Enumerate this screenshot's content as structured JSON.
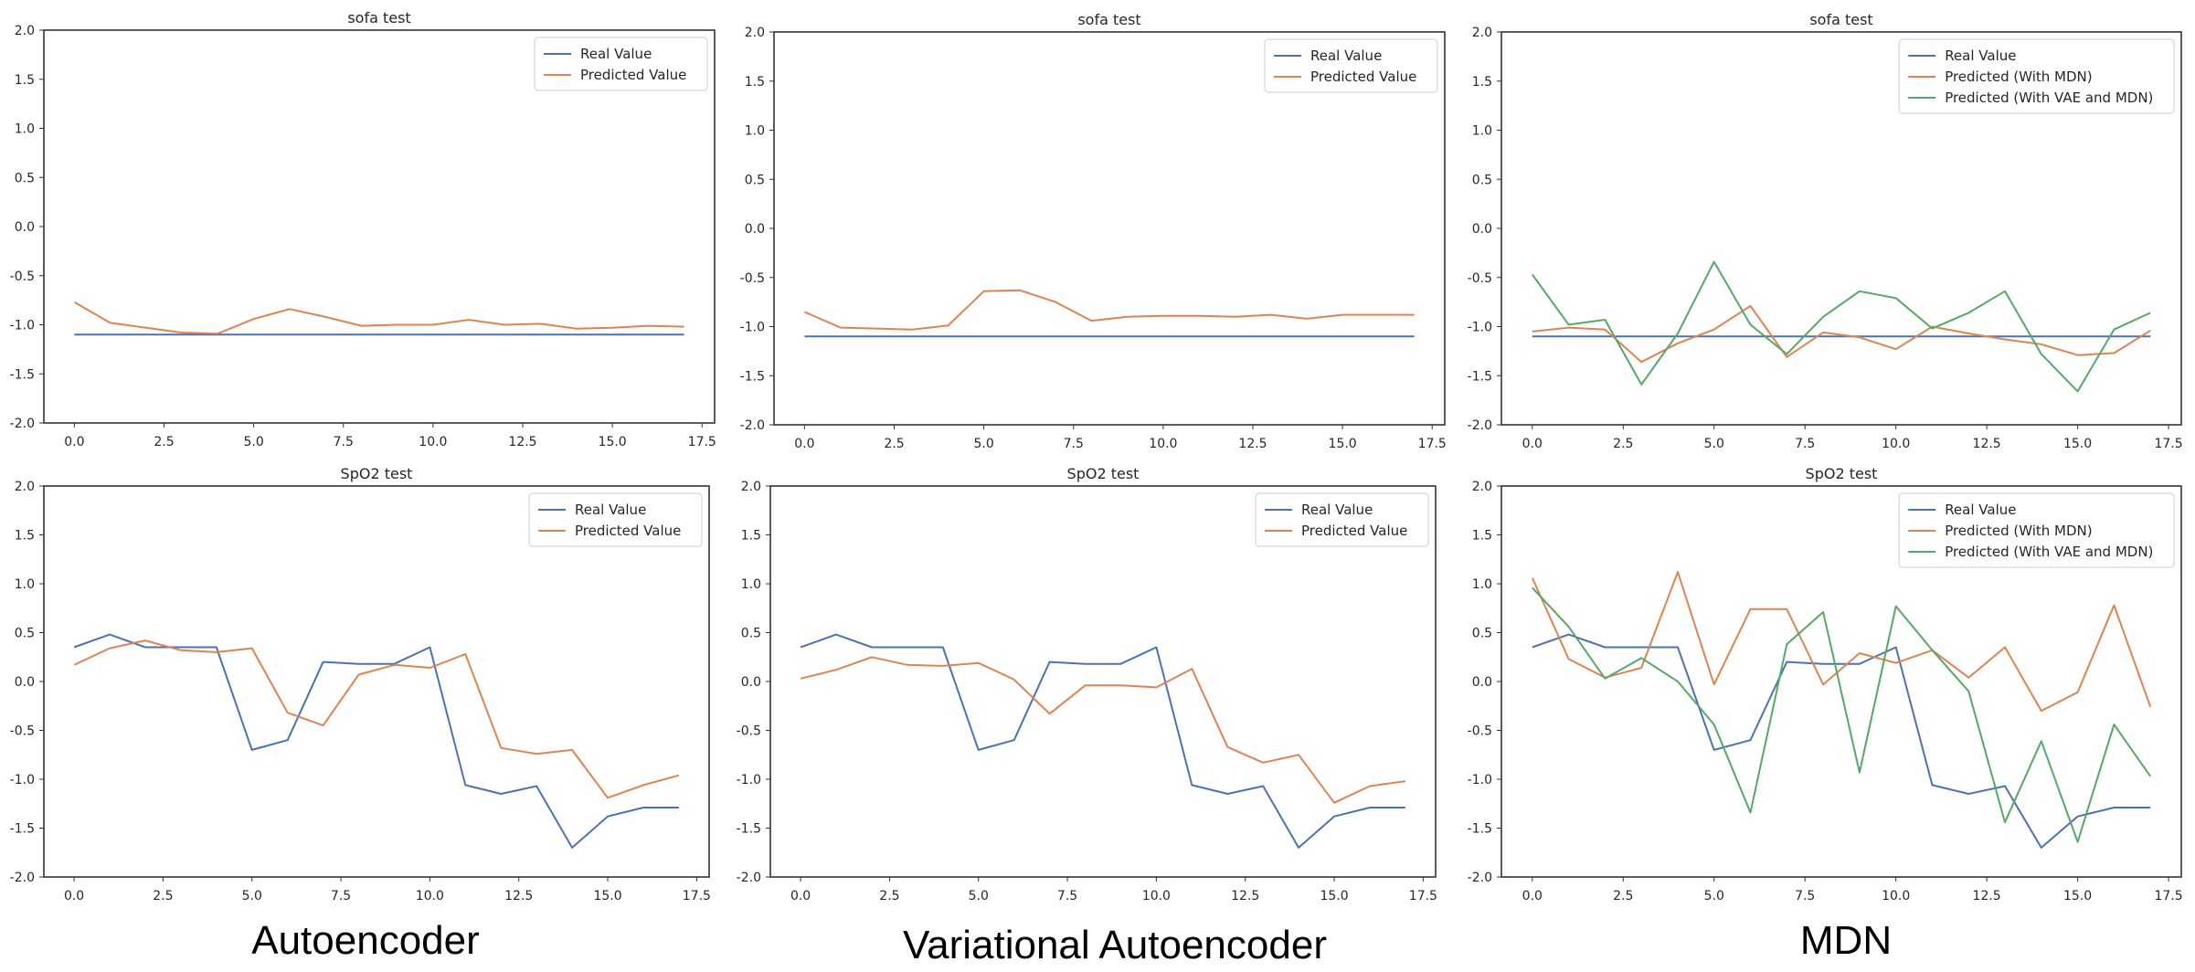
{
  "columns": [
    {
      "caption": "Autoencoder"
    },
    {
      "caption": "Variational Autoencoder"
    },
    {
      "caption": "MDN"
    }
  ],
  "colors": {
    "real": "#4c72b0",
    "mdn": "#dd8452",
    "vae_mdn": "#55a868"
  },
  "chart_data": [
    {
      "type": "line",
      "title": "sofa test",
      "xlabel": "",
      "ylabel": "",
      "xlim": [
        -0.85,
        17.85
      ],
      "ylim": [
        -2.0,
        2.0
      ],
      "xticks": [
        "0.0",
        "2.5",
        "5.0",
        "7.5",
        "10.0",
        "12.5",
        "15.0",
        "17.5"
      ],
      "yticks": [
        "-2.0",
        "-1.5",
        "-1.0",
        "-0.5",
        "0.0",
        "0.5",
        "1.0",
        "1.5",
        "2.0"
      ],
      "grid": false,
      "legend": "top-right",
      "x": [
        0,
        1,
        2,
        3,
        4,
        5,
        6,
        7,
        8,
        9,
        10,
        11,
        12,
        13,
        14,
        15,
        16,
        17
      ],
      "series": [
        {
          "name": "Real Value",
          "color": "#4c72b0",
          "values": [
            -1.1,
            -1.1,
            -1.1,
            -1.1,
            -1.1,
            -1.1,
            -1.1,
            -1.1,
            -1.1,
            -1.1,
            -1.1,
            -1.1,
            -1.1,
            -1.1,
            -1.1,
            -1.1,
            -1.1,
            -1.1
          ]
        },
        {
          "name": "Predicted Value",
          "color": "#dd8452",
          "values": [
            -0.77,
            -0.98,
            -1.03,
            -1.08,
            -1.09,
            -0.94,
            -0.84,
            -0.92,
            -1.01,
            -1.0,
            -1.0,
            -0.95,
            -1.0,
            -0.99,
            -1.04,
            -1.03,
            -1.01,
            -1.02
          ]
        }
      ]
    },
    {
      "type": "line",
      "title": "sofa test",
      "xlabel": "",
      "ylabel": "",
      "xlim": [
        -0.85,
        17.85
      ],
      "ylim": [
        -2.0,
        2.0
      ],
      "xticks": [
        "0.0",
        "2.5",
        "5.0",
        "7.5",
        "10.0",
        "12.5",
        "15.0",
        "17.5"
      ],
      "yticks": [
        "-2.0",
        "-1.5",
        "-1.0",
        "-0.5",
        "0.0",
        "0.5",
        "1.0",
        "1.5",
        "2.0"
      ],
      "grid": false,
      "legend": "top-right",
      "x": [
        0,
        1,
        2,
        3,
        4,
        5,
        6,
        7,
        8,
        9,
        10,
        11,
        12,
        13,
        14,
        15,
        16,
        17
      ],
      "series": [
        {
          "name": "Real Value",
          "color": "#4c72b0",
          "values": [
            -1.1,
            -1.1,
            -1.1,
            -1.1,
            -1.1,
            -1.1,
            -1.1,
            -1.1,
            -1.1,
            -1.1,
            -1.1,
            -1.1,
            -1.1,
            -1.1,
            -1.1,
            -1.1,
            -1.1,
            -1.1
          ]
        },
        {
          "name": "Predicted Value",
          "color": "#dd8452",
          "values": [
            -0.85,
            -1.01,
            -1.02,
            -1.03,
            -0.99,
            -0.64,
            -0.63,
            -0.75,
            -0.94,
            -0.9,
            -0.89,
            -0.89,
            -0.9,
            -0.88,
            -0.92,
            -0.88,
            -0.88,
            -0.88
          ]
        }
      ]
    },
    {
      "type": "line",
      "title": "sofa test",
      "xlabel": "",
      "ylabel": "",
      "xlim": [
        -0.85,
        17.85
      ],
      "ylim": [
        -2.0,
        2.0
      ],
      "xticks": [
        "0.0",
        "2.5",
        "5.0",
        "7.5",
        "10.0",
        "12.5",
        "15.0",
        "17.5"
      ],
      "yticks": [
        "-2.0",
        "-1.5",
        "-1.0",
        "-0.5",
        "0.0",
        "0.5",
        "1.0",
        "1.5",
        "2.0"
      ],
      "grid": false,
      "legend": "top-right",
      "x": [
        0,
        1,
        2,
        3,
        4,
        5,
        6,
        7,
        8,
        9,
        10,
        11,
        12,
        13,
        14,
        15,
        16,
        17
      ],
      "series": [
        {
          "name": "Real Value",
          "color": "#4c72b0",
          "values": [
            -1.1,
            -1.1,
            -1.1,
            -1.1,
            -1.1,
            -1.1,
            -1.1,
            -1.1,
            -1.1,
            -1.1,
            -1.1,
            -1.1,
            -1.1,
            -1.1,
            -1.1,
            -1.1,
            -1.1,
            -1.1
          ]
        },
        {
          "name": "Predicted (With MDN)",
          "color": "#dd8452",
          "values": [
            -1.05,
            -1.01,
            -1.03,
            -1.36,
            -1.17,
            -1.03,
            -0.79,
            -1.31,
            -1.06,
            -1.11,
            -1.23,
            -1.0,
            -1.07,
            -1.13,
            -1.18,
            -1.29,
            -1.27,
            -1.04
          ]
        },
        {
          "name": "Predicted (With VAE and MDN)",
          "color": "#55a868",
          "values": [
            -0.47,
            -0.98,
            -0.93,
            -1.59,
            -1.07,
            -0.34,
            -0.98,
            -1.28,
            -0.9,
            -0.64,
            -0.71,
            -1.02,
            -0.86,
            -0.64,
            -1.28,
            -1.66,
            -1.03,
            -0.86
          ]
        }
      ]
    },
    {
      "type": "line",
      "title": "SpO2 test",
      "xlabel": "",
      "ylabel": "",
      "xlim": [
        -0.85,
        17.85
      ],
      "ylim": [
        -2.0,
        2.0
      ],
      "xticks": [
        "0.0",
        "2.5",
        "5.0",
        "7.5",
        "10.0",
        "12.5",
        "15.0",
        "17.5"
      ],
      "yticks": [
        "-2.0",
        "-1.5",
        "-1.0",
        "-0.5",
        "0.0",
        "0.5",
        "1.0",
        "1.5",
        "2.0"
      ],
      "grid": false,
      "legend": "top-right",
      "x": [
        0,
        1,
        2,
        3,
        4,
        5,
        6,
        7,
        8,
        9,
        10,
        11,
        12,
        13,
        14,
        15,
        16,
        17
      ],
      "series": [
        {
          "name": "Real Value",
          "color": "#4c72b0",
          "values": [
            0.35,
            0.48,
            0.35,
            0.35,
            0.35,
            -0.7,
            -0.6,
            0.2,
            0.18,
            0.18,
            0.35,
            -1.06,
            -1.15,
            -1.07,
            -1.7,
            -1.38,
            -1.29,
            -1.29
          ]
        },
        {
          "name": "Predicted Value",
          "color": "#dd8452",
          "values": [
            0.17,
            0.34,
            0.42,
            0.32,
            0.3,
            0.34,
            -0.32,
            -0.45,
            0.07,
            0.17,
            0.14,
            0.28,
            -0.68,
            -0.74,
            -0.7,
            -1.19,
            -1.06,
            -0.96
          ]
        }
      ]
    },
    {
      "type": "line",
      "title": "SpO2 test",
      "xlabel": "",
      "ylabel": "",
      "xlim": [
        -0.85,
        17.85
      ],
      "ylim": [
        -2.0,
        2.0
      ],
      "xticks": [
        "0.0",
        "2.5",
        "5.0",
        "7.5",
        "10.0",
        "12.5",
        "15.0",
        "17.5"
      ],
      "yticks": [
        "-2.0",
        "-1.5",
        "-1.0",
        "-0.5",
        "0.0",
        "0.5",
        "1.0",
        "1.5",
        "2.0"
      ],
      "grid": false,
      "legend": "top-right",
      "x": [
        0,
        1,
        2,
        3,
        4,
        5,
        6,
        7,
        8,
        9,
        10,
        11,
        12,
        13,
        14,
        15,
        16,
        17
      ],
      "series": [
        {
          "name": "Real Value",
          "color": "#4c72b0",
          "values": [
            0.35,
            0.48,
            0.35,
            0.35,
            0.35,
            -0.7,
            -0.6,
            0.2,
            0.18,
            0.18,
            0.35,
            -1.06,
            -1.15,
            -1.07,
            -1.7,
            -1.38,
            -1.29,
            -1.29
          ]
        },
        {
          "name": "Predicted Value",
          "color": "#dd8452",
          "values": [
            0.03,
            0.12,
            0.25,
            0.17,
            0.16,
            0.19,
            0.02,
            -0.33,
            -0.04,
            -0.04,
            -0.06,
            0.13,
            -0.67,
            -0.83,
            -0.75,
            -1.24,
            -1.07,
            -1.02
          ]
        }
      ]
    },
    {
      "type": "line",
      "title": "SpO2 test",
      "xlabel": "",
      "ylabel": "",
      "xlim": [
        -0.85,
        17.85
      ],
      "ylim": [
        -2.0,
        2.0
      ],
      "xticks": [
        "0.0",
        "2.5",
        "5.0",
        "7.5",
        "10.0",
        "12.5",
        "15.0",
        "17.5"
      ],
      "yticks": [
        "-2.0",
        "-1.5",
        "-1.0",
        "-0.5",
        "0.0",
        "0.5",
        "1.0",
        "1.5",
        "2.0"
      ],
      "grid": false,
      "legend": "top-right",
      "x": [
        0,
        1,
        2,
        3,
        4,
        5,
        6,
        7,
        8,
        9,
        10,
        11,
        12,
        13,
        14,
        15,
        16,
        17
      ],
      "series": [
        {
          "name": "Real Value",
          "color": "#4c72b0",
          "values": [
            0.35,
            0.48,
            0.35,
            0.35,
            0.35,
            -0.7,
            -0.6,
            0.2,
            0.18,
            0.18,
            0.35,
            -1.06,
            -1.15,
            -1.07,
            -1.7,
            -1.38,
            -1.29,
            -1.29
          ]
        },
        {
          "name": "Predicted (With MDN)",
          "color": "#dd8452",
          "values": [
            1.06,
            0.23,
            0.04,
            0.14,
            1.12,
            -0.03,
            0.74,
            0.74,
            -0.03,
            0.29,
            0.19,
            0.32,
            0.04,
            0.35,
            -0.3,
            -0.11,
            0.78,
            -0.26
          ]
        },
        {
          "name": "Predicted (With VAE and MDN)",
          "color": "#55a868",
          "values": [
            0.96,
            0.56,
            0.03,
            0.24,
            0.0,
            -0.44,
            -1.34,
            0.38,
            0.71,
            -0.93,
            0.77,
            0.32,
            -0.1,
            -1.44,
            -0.61,
            -1.64,
            -0.44,
            -0.97
          ]
        }
      ]
    }
  ]
}
